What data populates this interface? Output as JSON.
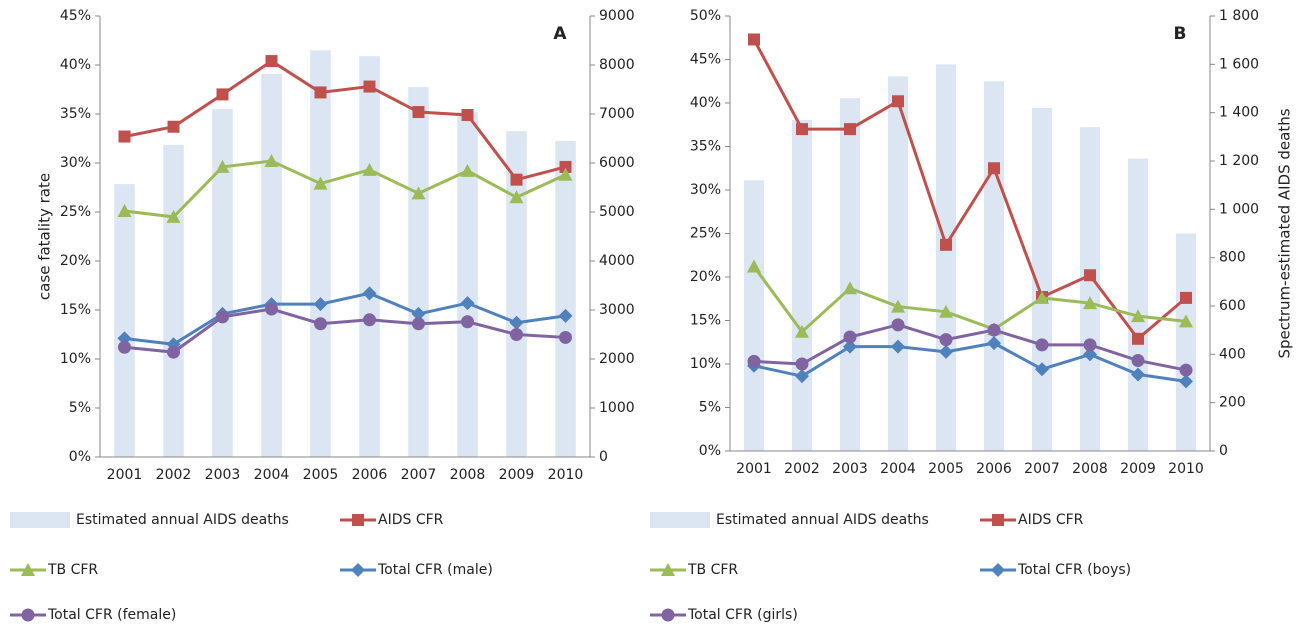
{
  "chart_data": [
    {
      "type": "combo",
      "panel_label": "A",
      "ylabel": "case fatality rate",
      "categories": [
        "2001",
        "2002",
        "2003",
        "2004",
        "2005",
        "2006",
        "2007",
        "2008",
        "2009",
        "2010"
      ],
      "ylim": [
        0,
        45
      ],
      "yticks": [
        {
          "value": 0,
          "label": "0%"
        },
        {
          "value": 5,
          "label": "5%"
        },
        {
          "value": 10,
          "label": "10%"
        },
        {
          "value": 15,
          "label": "15%"
        },
        {
          "value": 20,
          "label": "20%"
        },
        {
          "value": 25,
          "label": "25%"
        },
        {
          "value": 30,
          "label": "30%"
        },
        {
          "value": 35,
          "label": "35%"
        },
        {
          "value": 40,
          "label": "40%"
        },
        {
          "value": 45,
          "label": "45%"
        }
      ],
      "y2lim": [
        0,
        9000
      ],
      "y2ticks": [
        0,
        1000,
        2000,
        3000,
        4000,
        5000,
        6000,
        7000,
        8000,
        9000
      ],
      "series": [
        {
          "name": "Estimated annual AIDS deaths",
          "type": "bar",
          "axis": "y2",
          "color": "#dce6f2",
          "values": [
            5570,
            6370,
            7100,
            7820,
            8300,
            8180,
            7550,
            7040,
            6650,
            6450
          ]
        },
        {
          "name": "AIDS CFR",
          "type": "line",
          "marker": "square",
          "color": "#c0504d",
          "values": [
            32.7,
            33.7,
            37.0,
            40.4,
            37.2,
            37.8,
            35.2,
            34.9,
            28.3,
            29.6
          ]
        },
        {
          "name": "TB CFR",
          "type": "line",
          "marker": "triangle",
          "color": "#9bbb59",
          "values": [
            25.1,
            24.5,
            29.6,
            30.2,
            27.9,
            29.3,
            26.9,
            29.2,
            26.5,
            28.8
          ]
        },
        {
          "name": "Total CFR (male)",
          "type": "line",
          "marker": "diamond",
          "color": "#4f81bd",
          "values": [
            12.1,
            11.5,
            14.6,
            15.6,
            15.6,
            16.7,
            14.6,
            15.7,
            13.7,
            14.4
          ]
        },
        {
          "name": "Total CFR (female)",
          "type": "line",
          "marker": "circle",
          "color": "#8064a2",
          "values": [
            11.2,
            10.7,
            14.3,
            15.1,
            13.6,
            14.0,
            13.6,
            13.8,
            12.5,
            12.2
          ]
        }
      ]
    },
    {
      "type": "combo",
      "panel_label": "B",
      "y2label": "Spectrum-estimated AIDS deaths",
      "categories": [
        "2001",
        "2002",
        "2003",
        "2004",
        "2005",
        "2006",
        "2007",
        "2008",
        "2009",
        "2010"
      ],
      "ylim": [
        0,
        50
      ],
      "yticks": [
        {
          "value": 0,
          "label": "0%"
        },
        {
          "value": 5,
          "label": "5%"
        },
        {
          "value": 10,
          "label": "10%"
        },
        {
          "value": 15,
          "label": "15%"
        },
        {
          "value": 20,
          "label": "20%"
        },
        {
          "value": 25,
          "label": "25%"
        },
        {
          "value": 30,
          "label": "30%"
        },
        {
          "value": 35,
          "label": "35%"
        },
        {
          "value": 40,
          "label": "40%"
        },
        {
          "value": 45,
          "label": "45%"
        },
        {
          "value": 50,
          "label": "50%"
        }
      ],
      "y2lim": [
        0,
        1800
      ],
      "y2ticks": [
        0,
        200,
        400,
        600,
        800,
        {
          "value": 1000,
          "label": "1 000"
        },
        {
          "value": 1200,
          "label": "1 200"
        },
        {
          "value": 1400,
          "label": "1 400"
        },
        {
          "value": 1600,
          "label": "1 600"
        },
        {
          "value": 1800,
          "label": "1 800"
        }
      ],
      "series": [
        {
          "name": "Estimated annual AIDS deaths",
          "type": "bar",
          "axis": "y2",
          "color": "#dce6f2",
          "values": [
            1120,
            1370,
            1460,
            1550,
            1600,
            1530,
            1420,
            1340,
            1210,
            900
          ]
        },
        {
          "name": "AIDS CFR",
          "type": "line",
          "marker": "square",
          "color": "#c0504d",
          "values": [
            47.3,
            37.0,
            37.0,
            40.2,
            23.7,
            32.5,
            17.7,
            20.2,
            12.9,
            17.6
          ]
        },
        {
          "name": "TB CFR",
          "type": "line",
          "marker": "triangle",
          "color": "#9bbb59",
          "values": [
            21.2,
            13.7,
            18.7,
            16.6,
            16.0,
            14.0,
            17.6,
            17.0,
            15.5,
            14.9
          ]
        },
        {
          "name": "Total CFR (boys)",
          "type": "line",
          "marker": "diamond",
          "color": "#4f81bd",
          "values": [
            9.8,
            8.6,
            12.0,
            12.0,
            11.4,
            12.4,
            9.4,
            11.1,
            8.8,
            8.0
          ]
        },
        {
          "name": "Total CFR (girls)",
          "type": "line",
          "marker": "circle",
          "color": "#8064a2",
          "values": [
            10.3,
            10.0,
            13.1,
            14.5,
            12.8,
            13.9,
            12.2,
            12.2,
            10.4,
            9.3
          ]
        }
      ]
    }
  ]
}
